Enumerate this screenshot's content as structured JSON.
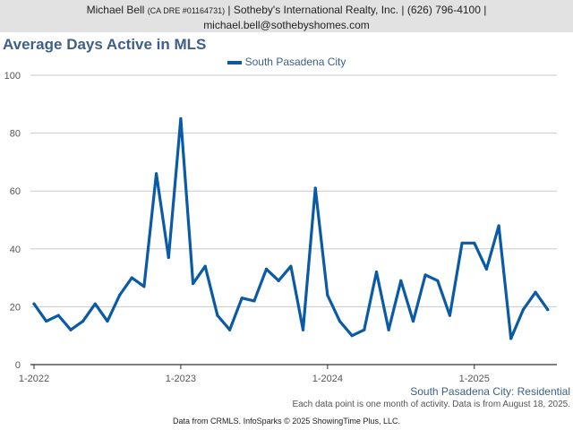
{
  "header": {
    "line1_name": "Michael Bell",
    "line1_dre": "(CA DRE #01164731)",
    "line1_rest": "| Sotheby's International Realty, Inc. | (626) 796-4100 |",
    "line2": "michael.bell@sothebyshomes.com"
  },
  "colors": {
    "series": "#0a5aa6",
    "title": "#3d5f8a",
    "header_bg": "#e2e2e2"
  },
  "chart_data": {
    "type": "line",
    "title": "Average Days Active in MLS",
    "subtitle": "South Pasadena City: Residential",
    "note": "Each data point is one month of activity. Data is from August 18, 2025.",
    "source": "Data from CRMLS. InfoSparks © 2025 ShowingTime Plus, LLC.",
    "ylim": [
      0,
      100
    ],
    "yticks": [
      "0",
      "20",
      "40",
      "60",
      "80",
      "100"
    ],
    "xticks": [
      "1-2022",
      "1-2023",
      "1-2024",
      "1-2025"
    ],
    "grid": true,
    "legend_position": "top-center",
    "series": [
      {
        "name": "South Pasadena City",
        "values": [
          21,
          15,
          17,
          12,
          15,
          21,
          15,
          24,
          30,
          27,
          66,
          37,
          85,
          28,
          34,
          17,
          12,
          23,
          22,
          33,
          29,
          34,
          12,
          61,
          24,
          15,
          10,
          12,
          32,
          12,
          29,
          15,
          31,
          29,
          17,
          42,
          42,
          33,
          48,
          9,
          19,
          25,
          19
        ]
      }
    ]
  }
}
